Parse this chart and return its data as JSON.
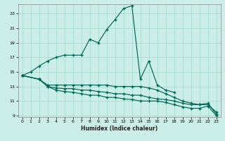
{
  "bg_color": "#cceee8",
  "grid_color": "#aaddcc",
  "line_color": "#006655",
  "xlabel": "Humidex (Indice chaleur)",
  "xlim": [
    -0.5,
    23.5
  ],
  "ylim": [
    8.8,
    24.3
  ],
  "yticks": [
    9,
    11,
    13,
    15,
    17,
    19,
    21,
    23
  ],
  "xticks": [
    0,
    1,
    2,
    3,
    4,
    5,
    6,
    7,
    8,
    9,
    10,
    11,
    12,
    13,
    14,
    15,
    16,
    17,
    18,
    19,
    20,
    21,
    22,
    23
  ],
  "curve_main_x": [
    0,
    1,
    2,
    3,
    4,
    5,
    6,
    7,
    8,
    9,
    10,
    11,
    12,
    13,
    14,
    15,
    16,
    17,
    18
  ],
  "curve_main_y": [
    14.5,
    15.0,
    15.8,
    16.5,
    17.0,
    17.3,
    17.3,
    17.3,
    19.5,
    19.0,
    20.8,
    22.2,
    23.7,
    24.1,
    14.0,
    16.5,
    13.2,
    12.5,
    12.2
  ],
  "curve2_x": [
    0,
    2,
    3,
    4,
    5,
    6,
    7,
    8,
    9,
    10,
    11,
    12,
    13,
    14,
    15,
    16,
    17,
    18,
    19,
    20,
    21,
    22,
    23
  ],
  "curve2_y": [
    14.5,
    14.0,
    13.2,
    13.2,
    13.2,
    13.2,
    13.2,
    13.2,
    13.2,
    13.2,
    13.0,
    13.0,
    13.0,
    13.0,
    12.8,
    12.5,
    12.0,
    11.5,
    11.0,
    10.7,
    10.5,
    10.5,
    9.5
  ],
  "curve3_x": [
    0,
    2,
    3,
    4,
    5,
    6,
    7,
    8,
    9,
    10,
    11,
    12,
    13,
    14,
    15,
    16,
    17,
    18,
    19,
    20,
    21,
    22,
    23
  ],
  "curve3_y": [
    14.5,
    14.0,
    13.0,
    12.8,
    12.7,
    12.7,
    12.5,
    12.5,
    12.3,
    12.2,
    12.0,
    12.0,
    11.8,
    11.8,
    11.5,
    11.3,
    11.2,
    11.0,
    10.7,
    10.5,
    10.5,
    10.7,
    9.2
  ],
  "curve4_x": [
    0,
    2,
    3,
    4,
    5,
    6,
    7,
    8,
    9,
    10,
    11,
    12,
    13,
    14,
    15,
    16,
    17,
    18,
    19,
    20,
    21,
    22,
    23
  ],
  "curve4_y": [
    14.5,
    14.0,
    13.0,
    12.5,
    12.3,
    12.2,
    12.0,
    11.8,
    11.8,
    11.5,
    11.5,
    11.3,
    11.2,
    11.0,
    11.0,
    11.0,
    10.8,
    10.5,
    10.2,
    10.0,
    10.0,
    10.3,
    9.0
  ]
}
